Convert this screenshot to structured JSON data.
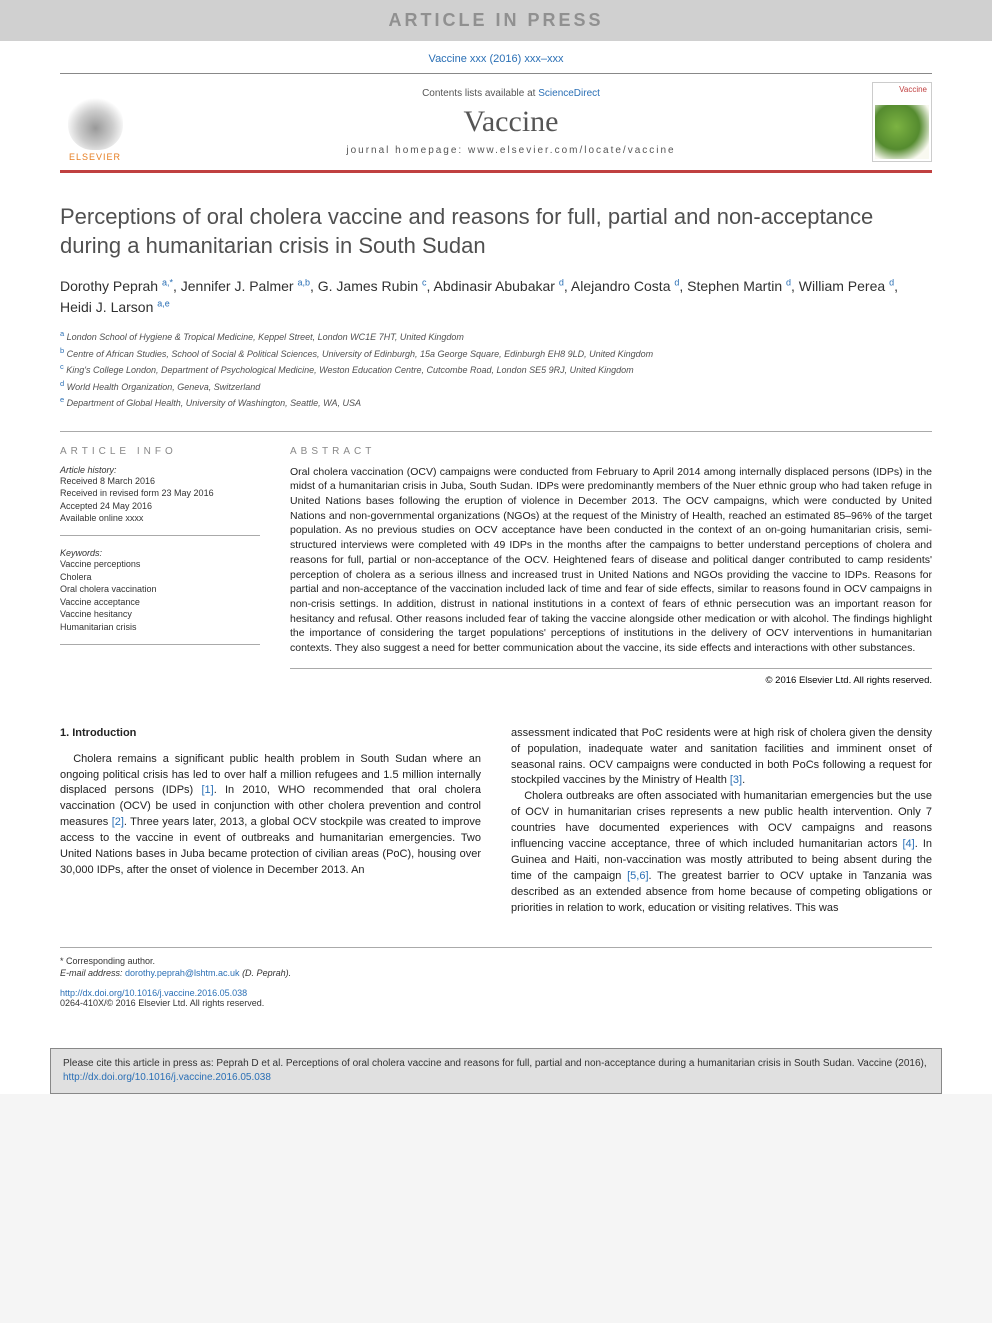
{
  "banner": {
    "text": "ARTICLE IN PRESS"
  },
  "citation_top": "Vaccine xxx (2016) xxx–xxx",
  "header": {
    "contents_prefix": "Contents lists available at ",
    "contents_link": "ScienceDirect",
    "journal_name": "Vaccine",
    "homepage_label": "journal homepage: www.elsevier.com/locate/vaccine",
    "publisher": "ELSEVIER",
    "cover_label": "Vaccine"
  },
  "article": {
    "title": "Perceptions of oral cholera vaccine and reasons for full, partial and non-acceptance during a humanitarian crisis in South Sudan",
    "authors_html": "Dorothy Peprah <sup>a,*</sup>, Jennifer J. Palmer <sup>a,b</sup>, G. James Rubin <sup>c</sup>, Abdinasir Abubakar <sup>d</sup>, Alejandro Costa <sup>d</sup>, Stephen Martin <sup>d</sup>, William Perea <sup>d</sup>, Heidi J. Larson <sup>a,e</sup>",
    "affiliations": [
      {
        "sup": "a",
        "text": "London School of Hygiene & Tropical Medicine, Keppel Street, London WC1E 7HT, United Kingdom"
      },
      {
        "sup": "b",
        "text": "Centre of African Studies, School of Social & Political Sciences, University of Edinburgh, 15a George Square, Edinburgh EH8 9LD, United Kingdom"
      },
      {
        "sup": "c",
        "text": "King's College London, Department of Psychological Medicine, Weston Education Centre, Cutcombe Road, London SE5 9RJ, United Kingdom"
      },
      {
        "sup": "d",
        "text": "World Health Organization, Geneva, Switzerland"
      },
      {
        "sup": "e",
        "text": "Department of Global Health, University of Washington, Seattle, WA, USA"
      }
    ]
  },
  "info": {
    "heading": "ARTICLE INFO",
    "history_label": "Article history:",
    "history": [
      "Received 8 March 2016",
      "Received in revised form 23 May 2016",
      "Accepted 24 May 2016",
      "Available online xxxx"
    ],
    "keywords_label": "Keywords:",
    "keywords": [
      "Vaccine perceptions",
      "Cholera",
      "Oral cholera vaccination",
      "Vaccine acceptance",
      "Vaccine hesitancy",
      "Humanitarian crisis"
    ]
  },
  "abstract": {
    "heading": "ABSTRACT",
    "text": "Oral cholera vaccination (OCV) campaigns were conducted from February to April 2014 among internally displaced persons (IDPs) in the midst of a humanitarian crisis in Juba, South Sudan. IDPs were predominantly members of the Nuer ethnic group who had taken refuge in United Nations bases following the eruption of violence in December 2013. The OCV campaigns, which were conducted by United Nations and non-governmental organizations (NGOs) at the request of the Ministry of Health, reached an estimated 85–96% of the target population. As no previous studies on OCV acceptance have been conducted in the context of an on-going humanitarian crisis, semi-structured interviews were completed with 49 IDPs in the months after the campaigns to better understand perceptions of cholera and reasons for full, partial or non-acceptance of the OCV. Heightened fears of disease and political danger contributed to camp residents' perception of cholera as a serious illness and increased trust in United Nations and NGOs providing the vaccine to IDPs. Reasons for partial and non-acceptance of the vaccination included lack of time and fear of side effects, similar to reasons found in OCV campaigns in non-crisis settings. In addition, distrust in national institutions in a context of fears of ethnic persecution was an important reason for hesitancy and refusal. Other reasons included fear of taking the vaccine alongside other medication or with alcohol. The findings highlight the importance of considering the target populations' perceptions of institutions in the delivery of OCV interventions in humanitarian contexts. They also suggest a need for better communication about the vaccine, its side effects and interactions with other substances.",
    "copyright": "© 2016 Elsevier Ltd. All rights reserved."
  },
  "body": {
    "section_heading": "1. Introduction",
    "col1_p1": "Cholera remains a significant public health problem in South Sudan where an ongoing political crisis has led to over half a million refugees and 1.5 million internally displaced persons (IDPs) [1]. In 2010, WHO recommended that oral cholera vaccination (OCV) be used in conjunction with other cholera prevention and control measures [2]. Three years later, 2013, a global OCV stockpile was created to improve access to the vaccine in event of outbreaks and humanitarian emergencies. Two United Nations bases in Juba became protection of civilian areas (PoC), housing over 30,000 IDPs, after the onset of violence in December 2013. An",
    "col2_p1": "assessment indicated that PoC residents were at high risk of cholera given the density of population, inadequate water and sanitation facilities and imminent onset of seasonal rains. OCV campaigns were conducted in both PoCs following a request for stockpiled vaccines by the Ministry of Health [3].",
    "col2_p2": "Cholera outbreaks are often associated with humanitarian emergencies but the use of OCV in humanitarian crises represents a new public health intervention. Only 7 countries have documented experiences with OCV campaigns and reasons influencing vaccine acceptance, three of which included humanitarian actors [4]. In Guinea and Haiti, non-vaccination was mostly attributed to being absent during the time of the campaign [5,6]. The greatest barrier to OCV uptake in Tanzania was described as an extended absence from home because of competing obligations or priorities in relation to work, education or visiting relatives. This was",
    "refs": {
      "r1": "[1]",
      "r2": "[2]",
      "r3": "[3]",
      "r4": "[4]",
      "r56": "[5,6]"
    }
  },
  "footer": {
    "corr_label": "* Corresponding author.",
    "email_label": "E-mail address: ",
    "email": "dorothy.peprah@lshtm.ac.uk",
    "email_suffix": " (D. Peprah).",
    "doi": "http://dx.doi.org/10.1016/j.vaccine.2016.05.038",
    "issn_line": "0264-410X/© 2016 Elsevier Ltd. All rights reserved."
  },
  "cite_box": {
    "text": "Please cite this article in press as: Peprah D et al. Perceptions of oral cholera vaccine and reasons for full, partial and non-acceptance during a humanitarian crisis in South Sudan. Vaccine (2016), ",
    "link": "http://dx.doi.org/10.1016/j.vaccine.2016.05.038"
  },
  "colors": {
    "banner_bg": "#d0d0d0",
    "banner_fg": "#909090",
    "link": "#2a6fb5",
    "rule": "#c04040",
    "elsevier": "#e67e22"
  }
}
